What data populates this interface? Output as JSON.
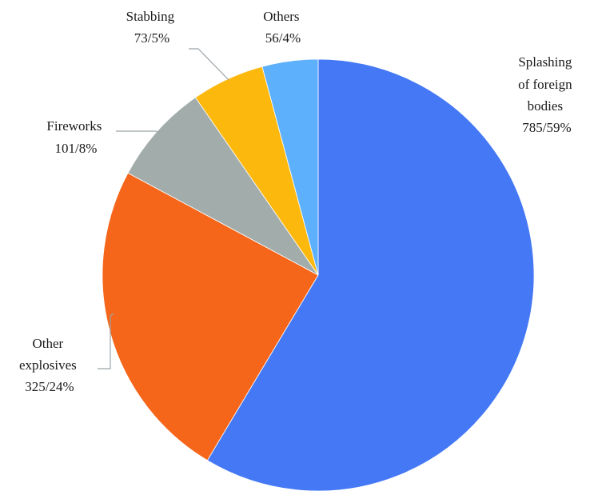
{
  "chart_data": {
    "type": "pie",
    "start": "12 o'clock",
    "direction": "clockwise",
    "slices": [
      {
        "name": "Splashing of foreign bodies",
        "label_lines": [
          "Splashing",
          "of foreign",
          "bodies"
        ],
        "count": 785,
        "percent_text": "785/59%",
        "value": 785,
        "color": "#4478f5"
      },
      {
        "name": "Other explosives",
        "label_lines": [
          "Other",
          "explosives"
        ],
        "count": 325,
        "percent_text": "325/24%",
        "value": 325,
        "color": "#f5661a"
      },
      {
        "name": "Fireworks",
        "label_lines": [
          "Fireworks"
        ],
        "count": 101,
        "percent_text": "101/8%",
        "value": 101,
        "color": "#a2acab"
      },
      {
        "name": "Stabbing",
        "label_lines": [
          "Stabbing"
        ],
        "count": 73,
        "percent_text": "73/5%",
        "value": 73,
        "color": "#fdb80d"
      },
      {
        "name": "Others",
        "label_lines": [
          "Others"
        ],
        "count": 56,
        "percent_text": "56/4%",
        "value": 56,
        "color": "#5db0fc"
      }
    ]
  }
}
